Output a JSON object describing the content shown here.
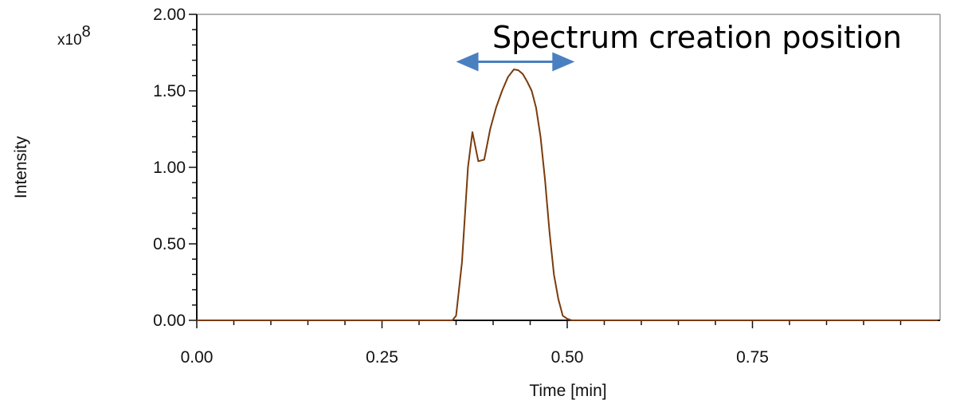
{
  "chart_data": {
    "type": "line",
    "xlabel": "Time [min]",
    "ylabel": "Intensity",
    "y_multiplier_base": "x10",
    "y_multiplier_exp": "8",
    "xlim": [
      0,
      1.0
    ],
    "ylim": [
      0,
      2.0
    ],
    "x_ticks": [
      0,
      0.25,
      0.5,
      0.75
    ],
    "x_tick_labels": [
      "0.00",
      "0.25",
      "0.50",
      "0.75"
    ],
    "y_ticks": [
      0,
      0.5,
      1.0,
      1.5,
      2.0
    ],
    "y_tick_labels": [
      "0.00",
      "0.50",
      "1.00",
      "1.50",
      "2.00"
    ],
    "grid": false,
    "annotation": {
      "text": "Spectrum creation position",
      "arrow_x_range": [
        0.35,
        0.51
      ],
      "arrow_y": 1.69,
      "arrow_color": "#4a7fc0"
    },
    "series": [
      {
        "color": "#7a3b0c",
        "x": [
          0,
          0.34,
          0.345,
          0.35,
          0.358,
          0.366,
          0.372,
          0.38,
          0.388,
          0.396,
          0.404,
          0.412,
          0.42,
          0.428,
          0.434,
          0.44,
          0.446,
          0.452,
          0.458,
          0.464,
          0.47,
          0.476,
          0.482,
          0.488,
          0.494,
          0.5,
          0.506,
          0.512,
          0.52,
          1.0
        ],
        "values": [
          0,
          0,
          0.0,
          0.03,
          0.38,
          1.0,
          1.23,
          1.04,
          1.05,
          1.25,
          1.39,
          1.5,
          1.59,
          1.64,
          1.635,
          1.61,
          1.56,
          1.5,
          1.39,
          1.2,
          0.92,
          0.58,
          0.3,
          0.14,
          0.03,
          0.01,
          0,
          0,
          0,
          0
        ]
      }
    ]
  }
}
